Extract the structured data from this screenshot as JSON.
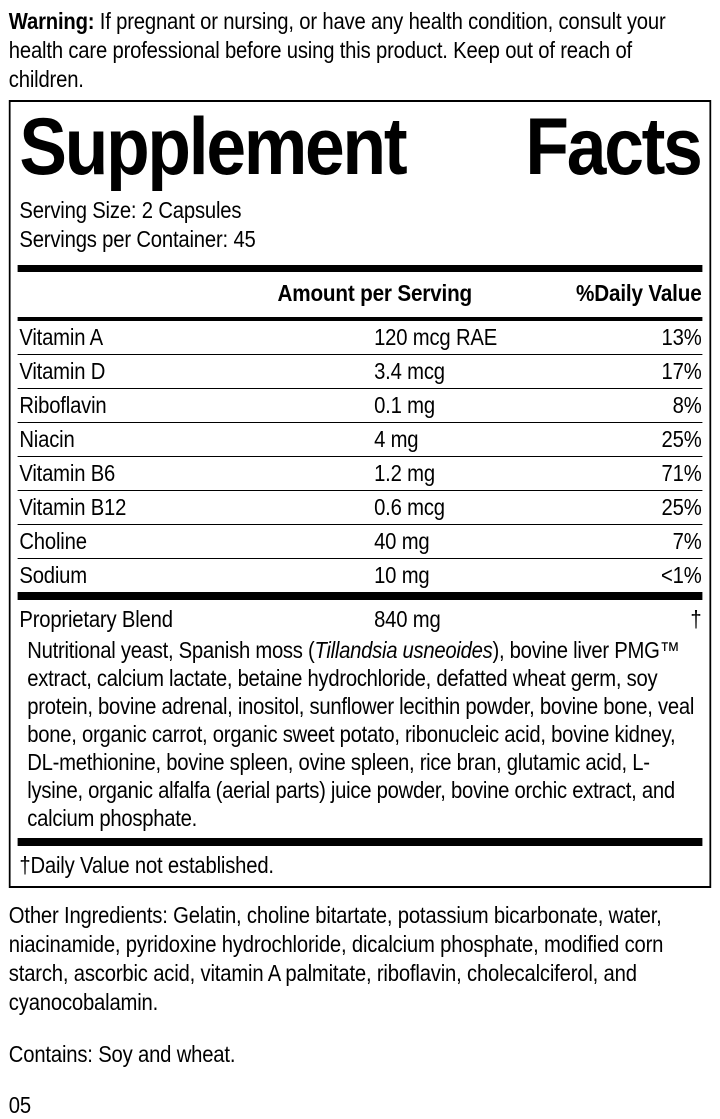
{
  "colors": {
    "ink": "#000000",
    "paper": "#ffffff"
  },
  "warning": {
    "label": "Warning:",
    "text": " If pregnant or nursing, or have any health condition, consult your health care professional before using this product. Keep out of reach of children."
  },
  "panel": {
    "title": "Supplement Facts",
    "serving_size": "Serving Size: 2 Capsules",
    "servings_per_container": "Servings per Container: 45",
    "columns": {
      "amount": "Amount per Serving",
      "dv": "%Daily Value"
    },
    "rows": [
      {
        "name": "Vitamin A",
        "amount": "120 mcg RAE",
        "dv": "13%"
      },
      {
        "name": "Vitamin D",
        "amount": "3.4 mcg",
        "dv": "17%"
      },
      {
        "name": "Riboflavin",
        "amount": "0.1 mg",
        "dv": "8%"
      },
      {
        "name": "Niacin",
        "amount": "4 mg",
        "dv": "25%"
      },
      {
        "name": "Vitamin B6",
        "amount": "1.2 mg",
        "dv": "71%"
      },
      {
        "name": "Vitamin B12",
        "amount": "0.6 mcg",
        "dv": "25%"
      },
      {
        "name": "Choline",
        "amount": "40 mg",
        "dv": "7%"
      },
      {
        "name": "Sodium",
        "amount": "10 mg",
        "dv": "<1%"
      }
    ],
    "blend": {
      "name": "Proprietary Blend",
      "amount": "840 mg",
      "dv": "†",
      "description_pre": "Nutritional yeast, Spanish moss (",
      "description_italic": "Tillandsia usneoides",
      "description_post": "), bovine liver PMG™ extract, calcium lactate, betaine hydrochloride, defatted wheat germ, soy protein, bovine adrenal, inositol, sunflower lecithin powder, bovine bone, veal bone, organic carrot, organic sweet potato, ribonucleic acid, bovine kidney, DL-methionine, bovine spleen, ovine spleen, rice bran, glutamic acid, L-lysine, organic alfalfa (aerial parts) juice powder, bovine orchic extract, and calcium phosphate."
    },
    "footnote": "†Daily Value not established."
  },
  "other_ingredients": "Other Ingredients: Gelatin, choline bitartate, potassium bicarbonate, water, niacinamide, pyridoxine hydrochloride, dicalcium phosphate, modified corn starch, ascorbic acid, vitamin A palmitate, riboflavin, cholecalciferol, and cyanocobalamin.",
  "contains": "Contains: Soy and wheat.",
  "footer_code": "05"
}
